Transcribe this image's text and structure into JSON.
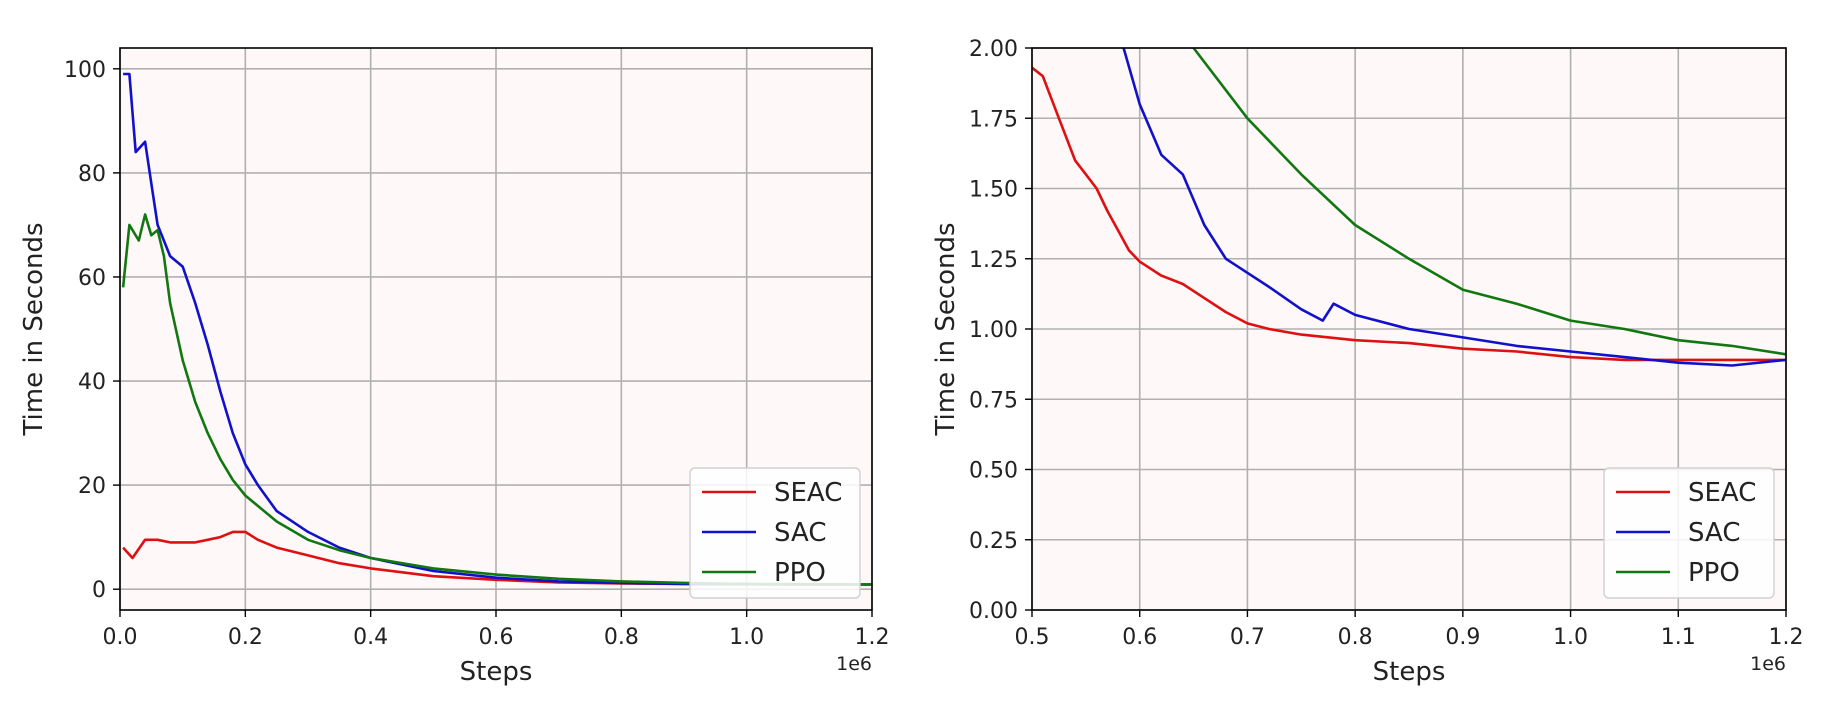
{
  "chart_data": [
    {
      "type": "line",
      "xlabel": "Steps",
      "ylabel": "Time in Seconds",
      "x_offset_label": "1e6",
      "xlim": [
        0.0,
        1.2
      ],
      "ylim": [
        -4,
        104
      ],
      "xticks": [
        "0.0",
        "0.2",
        "0.4",
        "0.6",
        "0.8",
        "1.0",
        "1.2"
      ],
      "yticks": [
        "0",
        "20",
        "40",
        "60",
        "80",
        "100"
      ],
      "grid": true,
      "legend_position": "lower-right",
      "background": "#fff8f8",
      "series": [
        {
          "name": "SEAC",
          "color": "#dd1111",
          "x": [
            0.005,
            0.02,
            0.04,
            0.06,
            0.08,
            0.1,
            0.12,
            0.14,
            0.16,
            0.18,
            0.2,
            0.22,
            0.25,
            0.3,
            0.35,
            0.4,
            0.5,
            0.6,
            0.7,
            0.8,
            0.9,
            1.0,
            1.1,
            1.2
          ],
          "values": [
            8,
            6,
            9.5,
            9.5,
            9,
            9,
            9,
            9.5,
            10,
            11,
            11,
            9.5,
            8,
            6.5,
            5,
            4,
            2.5,
            1.8,
            1.3,
            1.1,
            1.0,
            0.95,
            0.9,
            0.9
          ]
        },
        {
          "name": "SAC",
          "color": "#1111cc",
          "x": [
            0.005,
            0.015,
            0.025,
            0.04,
            0.05,
            0.06,
            0.08,
            0.1,
            0.12,
            0.14,
            0.16,
            0.18,
            0.2,
            0.22,
            0.25,
            0.3,
            0.35,
            0.4,
            0.5,
            0.6,
            0.7,
            0.8,
            0.9,
            1.0,
            1.1,
            1.2
          ],
          "values": [
            99,
            99,
            84,
            86,
            78,
            70,
            64,
            62,
            55,
            47,
            38,
            30,
            24,
            20,
            15,
            11,
            8,
            6,
            3.5,
            2.2,
            1.5,
            1.2,
            1.0,
            0.95,
            0.9,
            0.9
          ]
        },
        {
          "name": "PPO",
          "color": "#117711",
          "x": [
            0.005,
            0.015,
            0.03,
            0.04,
            0.05,
            0.06,
            0.07,
            0.08,
            0.1,
            0.12,
            0.14,
            0.16,
            0.18,
            0.2,
            0.25,
            0.3,
            0.35,
            0.4,
            0.5,
            0.6,
            0.7,
            0.8,
            0.9,
            1.0,
            1.1,
            1.2
          ],
          "values": [
            58,
            70,
            67,
            72,
            68,
            69,
            64,
            55,
            44,
            36,
            30,
            25,
            21,
            18,
            13,
            9.5,
            7.5,
            6,
            4,
            2.8,
            2,
            1.5,
            1.2,
            1.0,
            0.95,
            0.9
          ]
        }
      ]
    },
    {
      "type": "line",
      "xlabel": "Steps",
      "ylabel": "Time in Seconds",
      "x_offset_label": "1e6",
      "xlim": [
        0.5,
        1.2
      ],
      "ylim": [
        0.0,
        2.0
      ],
      "xticks": [
        "0.5",
        "0.6",
        "0.7",
        "0.8",
        "0.9",
        "1.0",
        "1.1",
        "1.2"
      ],
      "yticks": [
        "0.00",
        "0.25",
        "0.50",
        "0.75",
        "1.00",
        "1.25",
        "1.50",
        "1.75",
        "2.00"
      ],
      "grid": true,
      "legend_position": "lower-right",
      "background": "#fff8f8",
      "series": [
        {
          "name": "SEAC",
          "color": "#dd1111",
          "x": [
            0.5,
            0.51,
            0.52,
            0.53,
            0.54,
            0.55,
            0.56,
            0.57,
            0.58,
            0.59,
            0.6,
            0.62,
            0.64,
            0.66,
            0.68,
            0.7,
            0.72,
            0.75,
            0.8,
            0.85,
            0.9,
            0.95,
            1.0,
            1.05,
            1.1,
            1.15,
            1.2
          ],
          "values": [
            1.93,
            1.9,
            1.8,
            1.7,
            1.6,
            1.55,
            1.5,
            1.42,
            1.35,
            1.28,
            1.24,
            1.19,
            1.16,
            1.11,
            1.06,
            1.02,
            1.0,
            0.98,
            0.96,
            0.95,
            0.93,
            0.92,
            0.9,
            0.89,
            0.89,
            0.89,
            0.89
          ]
        },
        {
          "name": "SAC",
          "color": "#1111cc",
          "x": [
            0.585,
            0.6,
            0.62,
            0.64,
            0.66,
            0.68,
            0.7,
            0.72,
            0.75,
            0.77,
            0.78,
            0.8,
            0.85,
            0.9,
            0.95,
            1.0,
            1.05,
            1.1,
            1.15,
            1.2
          ],
          "values": [
            2.0,
            1.8,
            1.62,
            1.55,
            1.37,
            1.25,
            1.2,
            1.15,
            1.07,
            1.03,
            1.09,
            1.05,
            1.0,
            0.97,
            0.94,
            0.92,
            0.9,
            0.88,
            0.87,
            0.89
          ]
        },
        {
          "name": "PPO",
          "color": "#117711",
          "x": [
            0.65,
            0.7,
            0.75,
            0.8,
            0.85,
            0.9,
            0.95,
            1.0,
            1.05,
            1.1,
            1.15,
            1.2
          ],
          "values": [
            2.0,
            1.75,
            1.55,
            1.37,
            1.25,
            1.14,
            1.09,
            1.03,
            1.0,
            0.96,
            0.94,
            0.91
          ]
        }
      ]
    }
  ]
}
